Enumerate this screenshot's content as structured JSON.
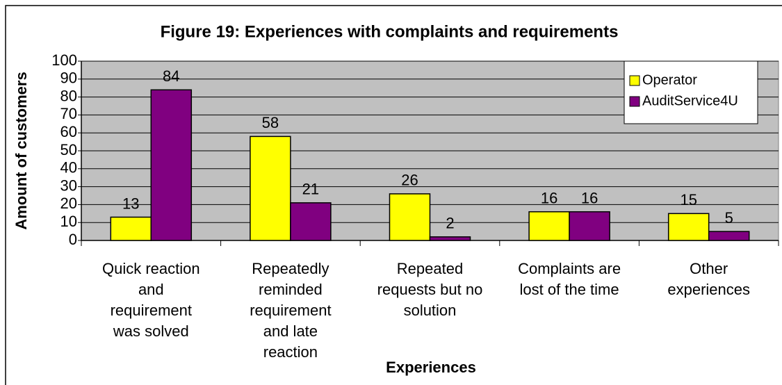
{
  "chart_data": {
    "type": "bar",
    "title": "Figure 19: Experiences with complaints and requirements",
    "x_label": "Experiences",
    "y_label": "Amount of customers",
    "categories": [
      "Quick reaction and requirement was solved",
      "Repeatedly reminded requirement and late reaction",
      "Repeated requests but no solution",
      "Complaints are lost of the time",
      "Other experiences"
    ],
    "series": [
      {
        "name": "Operator",
        "color": "#ffff00",
        "values": [
          13,
          58,
          26,
          16,
          15
        ]
      },
      {
        "name": "AuditService4U",
        "color": "#800080",
        "values": [
          84,
          21,
          2,
          16,
          5
        ]
      }
    ],
    "ylim": [
      0,
      100
    ],
    "yticks": [
      0,
      10,
      20,
      30,
      40,
      50,
      60,
      70,
      80,
      90,
      100
    ],
    "grid": true,
    "legend": "top-right",
    "plot_background": "#c0c0c0"
  }
}
